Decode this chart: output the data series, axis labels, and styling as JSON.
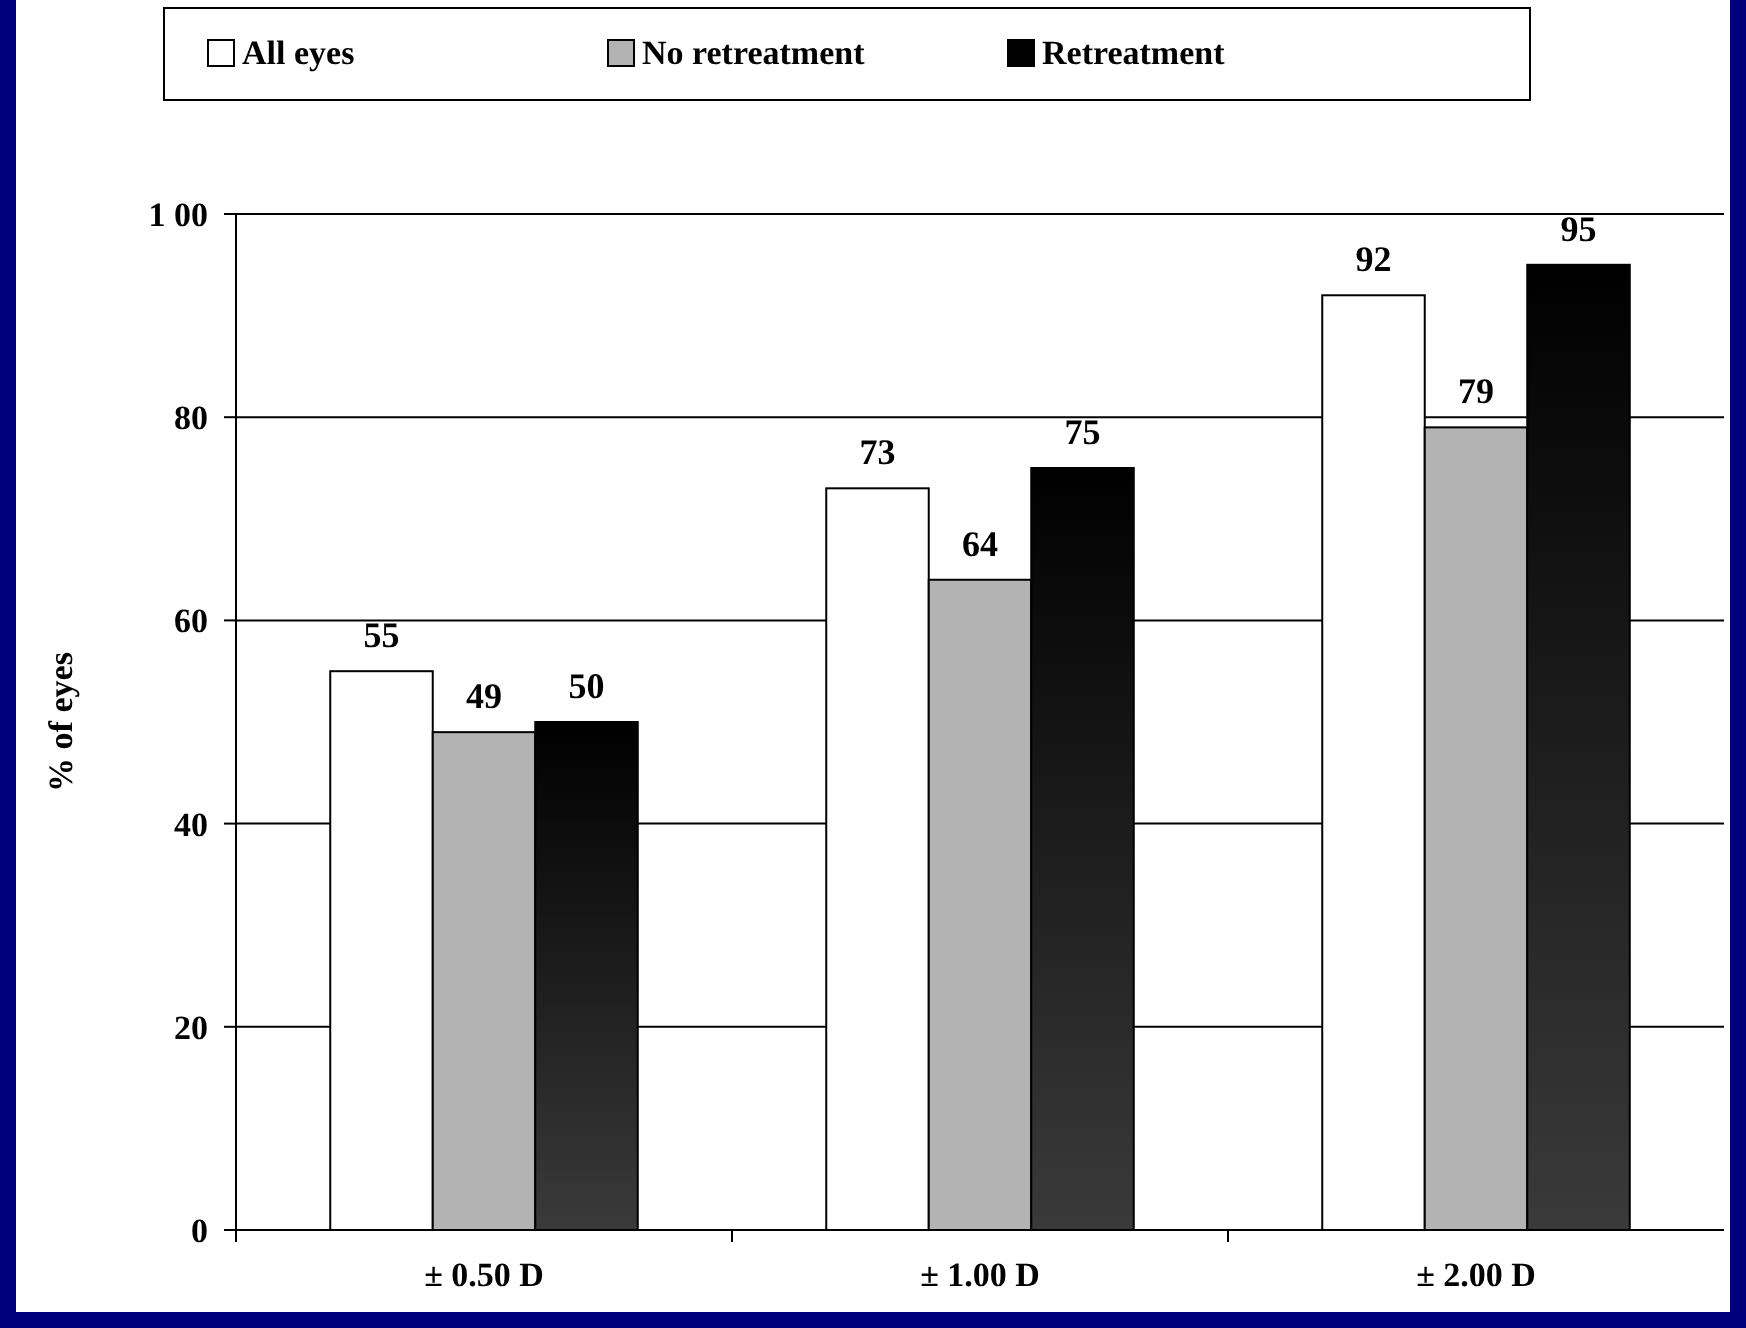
{
  "chart_data": {
    "type": "bar",
    "ylabel": "% of eyes",
    "categories": [
      "± 0.50 D",
      "± 1.00 D",
      "± 2.00 D"
    ],
    "series": [
      {
        "name": "All eyes",
        "color": "#ffffff",
        "values": [
          55,
          73,
          92
        ]
      },
      {
        "name": "No retreatment",
        "color": "#b3b3b3",
        "values": [
          49,
          64,
          79
        ]
      },
      {
        "name": "Retreatment",
        "color": "#000000",
        "values": [
          50,
          75,
          95
        ]
      }
    ],
    "ylim": [
      0,
      100
    ],
    "yticks": [
      0,
      20,
      40,
      60,
      80,
      {
        "value": 100,
        "label": "1 00"
      }
    ],
    "grid": "y",
    "legend": "top",
    "data_labels": true
  }
}
